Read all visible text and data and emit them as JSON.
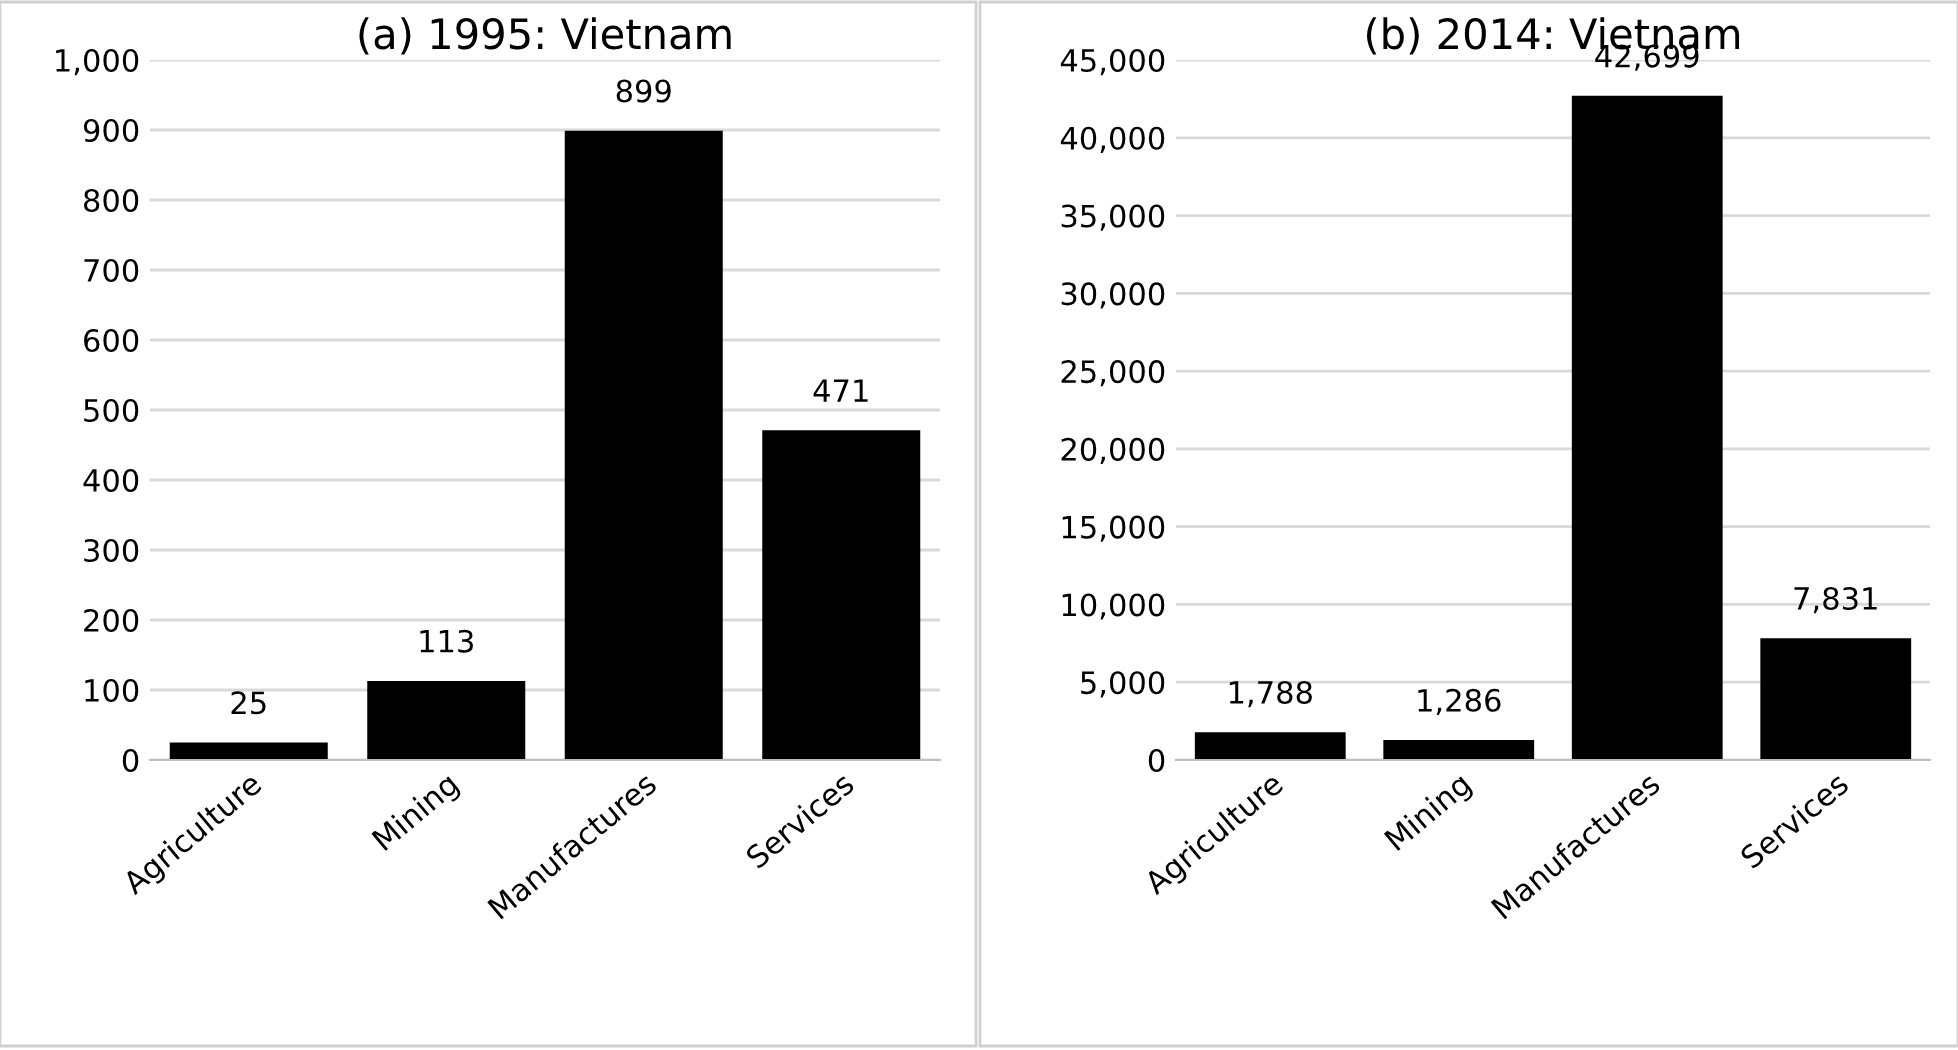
{
  "chart_data": [
    {
      "type": "bar",
      "title": "(a) 1995: Vietnam",
      "categories": [
        "Agriculture",
        "Mining",
        "Manufactures",
        "Services"
      ],
      "values": [
        25,
        113,
        899,
        471
      ],
      "color": "#000000",
      "value_labels": [
        "25",
        "113",
        "899",
        "471"
      ],
      "ylim": [
        0,
        1000
      ],
      "yticks": [
        0,
        100,
        200,
        300,
        400,
        500,
        600,
        700,
        800,
        900,
        {
          "value": 1000,
          "label": "1,000"
        }
      ],
      "grid": "y"
    },
    {
      "type": "bar",
      "title": "(b) 2014: Vietnam",
      "categories": [
        "Agriculture",
        "Mining",
        "Manufactures",
        "Services"
      ],
      "values": [
        1788,
        1286,
        42699,
        7831
      ],
      "color": "#000000",
      "value_labels": [
        "1,788",
        "1,286",
        "42,699",
        "7,831"
      ],
      "ylim": [
        0,
        45000
      ],
      "yticks": [
        0,
        {
          "value": 5000,
          "label": "5,000"
        },
        {
          "value": 10000,
          "label": "10,000"
        },
        {
          "value": 15000,
          "label": "15,000"
        },
        {
          "value": 20000,
          "label": "20,000"
        },
        {
          "value": 25000,
          "label": "25,000"
        },
        {
          "value": 30000,
          "label": "30,000"
        },
        {
          "value": 35000,
          "label": "35,000"
        },
        {
          "value": 40000,
          "label": "40,000"
        },
        {
          "value": 45000,
          "label": "45,000"
        }
      ],
      "grid": "y"
    }
  ]
}
